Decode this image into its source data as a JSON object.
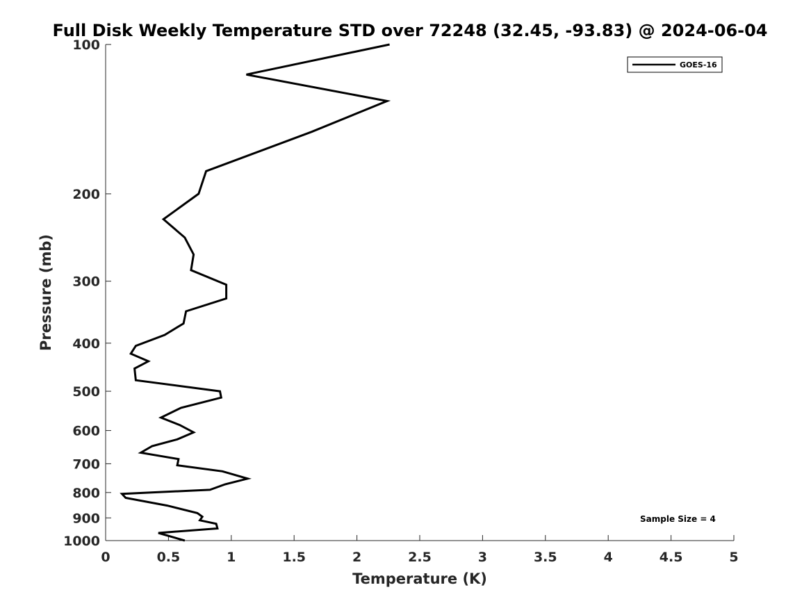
{
  "chart_data": {
    "type": "line",
    "title": "Full Disk Weekly Temperature STD over 72248 (32.45, -93.83) @ 2024-06-04",
    "xlabel": "Temperature (K)",
    "ylabel": "Pressure (mb)",
    "xlim": [
      0,
      5
    ],
    "ylim": [
      100,
      1000
    ],
    "y_scale": "log",
    "y_reversed": true,
    "x_ticks": [
      0,
      0.5,
      1,
      1.5,
      2,
      2.5,
      3,
      3.5,
      4,
      4.5,
      5
    ],
    "x_tick_labels": [
      "0",
      "0.5",
      "1",
      "1.5",
      "2",
      "2.5",
      "3",
      "3.5",
      "4",
      "4.5",
      "5"
    ],
    "y_ticks": [
      100,
      200,
      300,
      400,
      500,
      600,
      700,
      800,
      900,
      1000
    ],
    "y_tick_labels": [
      "100",
      "200",
      "300",
      "400",
      "500",
      "600",
      "700",
      "800",
      "900",
      "1000"
    ],
    "grid": false,
    "legend_position": "top-right",
    "annotation": "Sample Size = 4",
    "line_color": "#000000",
    "series": [
      {
        "name": "GOES-16",
        "x": [
          2.26,
          1.12,
          2.24,
          1.64,
          0.8,
          0.74,
          0.46,
          0.63,
          0.7,
          0.68,
          0.96,
          0.96,
          0.64,
          0.62,
          0.47,
          0.24,
          0.2,
          0.34,
          0.23,
          0.24,
          0.91,
          0.92,
          0.6,
          0.44,
          0.59,
          0.7,
          0.57,
          0.37,
          0.28,
          0.58,
          0.57,
          0.93,
          1.13,
          0.95,
          0.83,
          0.13,
          0.16,
          0.49,
          0.73,
          0.77,
          0.75,
          0.88,
          0.89,
          0.42,
          0.63
        ],
        "y": [
          100,
          115,
          130,
          150,
          180,
          200,
          225,
          245,
          265,
          285,
          305,
          325,
          345,
          365,
          385,
          405,
          420,
          435,
          450,
          475,
          500,
          515,
          540,
          565,
          585,
          605,
          625,
          645,
          665,
          685,
          705,
          725,
          750,
          770,
          790,
          805,
          820,
          850,
          880,
          895,
          910,
          925,
          945,
          965,
          1000
        ]
      }
    ]
  }
}
